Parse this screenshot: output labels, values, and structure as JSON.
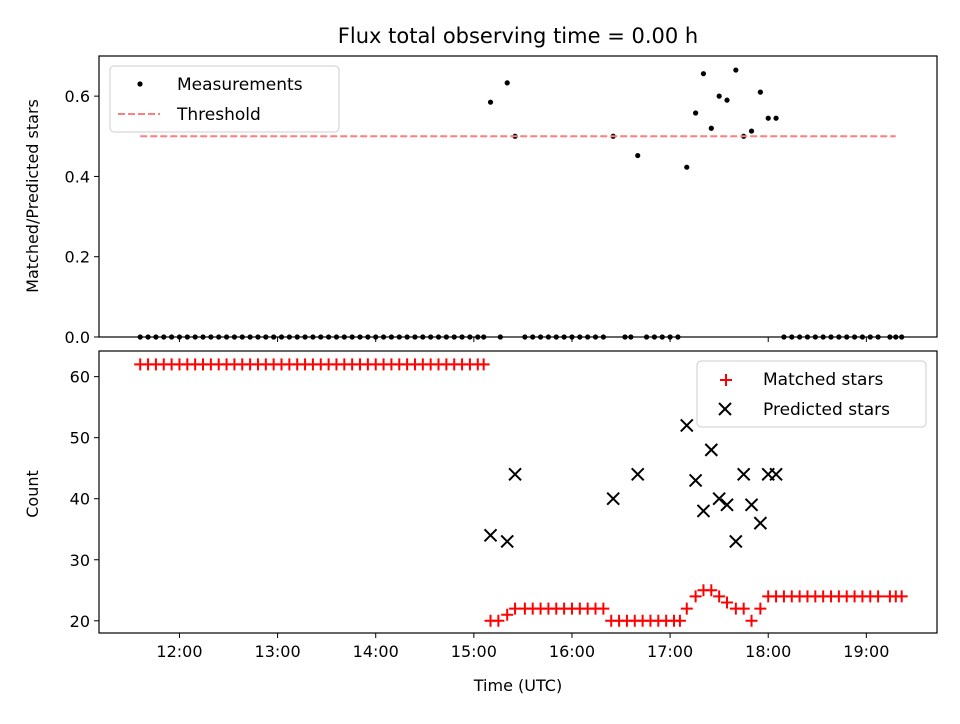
{
  "chart_data": [
    {
      "type": "scatter",
      "title": "Flux total observing time = 0.00 h",
      "xlabel": "",
      "ylabel": "Matched/Predicted stars",
      "xlim": [
        11.18,
        19.72
      ],
      "ylim": [
        0.0,
        0.7
      ],
      "yticks": [
        0.0,
        0.2,
        0.4,
        0.6
      ],
      "ytick_labels": [
        "0.0",
        "0.2",
        "0.4",
        "0.6"
      ],
      "legend_position": "upper left",
      "series": [
        {
          "name": "Measurements",
          "kind": "points",
          "color": "#000000",
          "x": [
            11.6,
            11.68,
            11.76,
            11.84,
            11.92,
            12.0,
            12.08,
            12.16,
            12.24,
            12.32,
            12.4,
            12.48,
            12.56,
            12.64,
            12.72,
            12.8,
            12.88,
            12.96,
            13.04,
            13.12,
            13.2,
            13.28,
            13.36,
            13.44,
            13.52,
            13.6,
            13.68,
            13.76,
            13.84,
            13.92,
            14.0,
            14.08,
            14.16,
            14.24,
            14.32,
            14.4,
            14.48,
            14.56,
            14.64,
            14.72,
            14.8,
            14.88,
            14.96,
            15.04,
            15.1,
            15.17,
            15.27,
            15.34,
            15.42,
            15.52,
            15.6,
            15.68,
            15.76,
            15.84,
            15.92,
            16.0,
            16.08,
            16.16,
            16.24,
            16.32,
            16.42,
            16.54,
            16.6,
            16.67,
            16.76,
            16.84,
            16.92,
            17.0,
            17.08,
            17.17,
            17.26,
            17.34,
            17.42,
            17.5,
            17.58,
            17.67,
            17.75,
            17.83,
            17.92,
            18.0,
            18.08,
            18.16,
            18.24,
            18.32,
            18.4,
            18.48,
            18.56,
            18.64,
            18.72,
            18.8,
            18.88,
            18.96,
            19.04,
            19.12,
            19.24,
            19.3,
            19.36
          ],
          "y": [
            0,
            0,
            0,
            0,
            0,
            0,
            0,
            0,
            0,
            0,
            0,
            0,
            0,
            0,
            0,
            0,
            0,
            0,
            0,
            0,
            0,
            0,
            0,
            0,
            0,
            0,
            0,
            0,
            0,
            0,
            0,
            0,
            0,
            0,
            0,
            0,
            0,
            0,
            0,
            0,
            0,
            0,
            0,
            0,
            0,
            0.585,
            0,
            0.633,
            0.5,
            0,
            0,
            0,
            0,
            0,
            0,
            0,
            0,
            0,
            0,
            0,
            0.5,
            0,
            0,
            0.452,
            0,
            0,
            0,
            0,
            0,
            0.423,
            0.558,
            0.656,
            0.52,
            0.6,
            0.59,
            0.665,
            0.5,
            0.513,
            0.61,
            0.545,
            0.545,
            0,
            0,
            0,
            0,
            0,
            0,
            0,
            0,
            0,
            0,
            0,
            0,
            0,
            0,
            0,
            0
          ]
        },
        {
          "name": "Threshold",
          "kind": "line",
          "style": "dashed",
          "color": "#ff7f7f",
          "x": [
            11.6,
            19.3
          ],
          "y": [
            0.5,
            0.5
          ]
        }
      ]
    },
    {
      "type": "scatter",
      "title": "",
      "xlabel": "Time (UTC)",
      "ylabel": "Count",
      "xlim": [
        11.18,
        19.72
      ],
      "ylim": [
        18,
        64.2
      ],
      "yticks": [
        20,
        30,
        40,
        50,
        60
      ],
      "ytick_labels": [
        "20",
        "30",
        "40",
        "50",
        "60"
      ],
      "xticks": [
        12,
        13,
        14,
        15,
        16,
        17,
        18,
        19
      ],
      "xtick_labels": [
        "12:00",
        "13:00",
        "14:00",
        "15:00",
        "16:00",
        "17:00",
        "18:00",
        "19:00"
      ],
      "legend_position": "upper right",
      "series": [
        {
          "name": "Matched stars",
          "kind": "plus",
          "color": "#ff0000",
          "x": [
            11.6,
            11.68,
            11.76,
            11.84,
            11.92,
            12.0,
            12.08,
            12.16,
            12.24,
            12.32,
            12.4,
            12.48,
            12.56,
            12.64,
            12.72,
            12.8,
            12.88,
            12.96,
            13.04,
            13.12,
            13.2,
            13.28,
            13.36,
            13.44,
            13.52,
            13.6,
            13.68,
            13.76,
            13.84,
            13.92,
            14.0,
            14.08,
            14.16,
            14.24,
            14.32,
            14.4,
            14.48,
            14.56,
            14.64,
            14.72,
            14.8,
            14.88,
            14.96,
            15.04,
            15.1,
            15.17,
            15.25,
            15.34,
            15.42,
            15.52,
            15.6,
            15.68,
            15.76,
            15.84,
            15.92,
            16.0,
            16.08,
            16.16,
            16.24,
            16.32,
            16.4,
            16.48,
            16.56,
            16.64,
            16.72,
            16.8,
            16.88,
            16.96,
            17.04,
            17.1,
            17.17,
            17.26,
            17.34,
            17.42,
            17.5,
            17.58,
            17.67,
            17.75,
            17.83,
            17.92,
            18.0,
            18.08,
            18.16,
            18.24,
            18.32,
            18.4,
            18.48,
            18.56,
            18.64,
            18.72,
            18.8,
            18.88,
            18.96,
            19.04,
            19.12,
            19.24,
            19.3,
            19.36
          ],
          "y": [
            62,
            62,
            62,
            62,
            62,
            62,
            62,
            62,
            62,
            62,
            62,
            62,
            62,
            62,
            62,
            62,
            62,
            62,
            62,
            62,
            62,
            62,
            62,
            62,
            62,
            62,
            62,
            62,
            62,
            62,
            62,
            62,
            62,
            62,
            62,
            62,
            62,
            62,
            62,
            62,
            62,
            62,
            62,
            62,
            62,
            20,
            20,
            21,
            22,
            22,
            22,
            22,
            22,
            22,
            22,
            22,
            22,
            22,
            22,
            22,
            20,
            20,
            20,
            20,
            20,
            20,
            20,
            20,
            20,
            20,
            22,
            24,
            25,
            25,
            24,
            23,
            22,
            22,
            20,
            22,
            24,
            24,
            24,
            24,
            24,
            24,
            24,
            24,
            24,
            24,
            24,
            24,
            24,
            24,
            24,
            24,
            24,
            24
          ]
        },
        {
          "name": "Predicted stars",
          "kind": "x",
          "color": "#000000",
          "x": [
            15.17,
            15.34,
            15.42,
            16.42,
            16.67,
            17.17,
            17.26,
            17.34,
            17.42,
            17.5,
            17.58,
            17.67,
            17.75,
            17.83,
            17.92,
            18.0,
            18.08
          ],
          "y": [
            34,
            33,
            44,
            40,
            44,
            52,
            43,
            38,
            48,
            40,
            39,
            33,
            44,
            39,
            36,
            44,
            44
          ]
        }
      ]
    }
  ]
}
